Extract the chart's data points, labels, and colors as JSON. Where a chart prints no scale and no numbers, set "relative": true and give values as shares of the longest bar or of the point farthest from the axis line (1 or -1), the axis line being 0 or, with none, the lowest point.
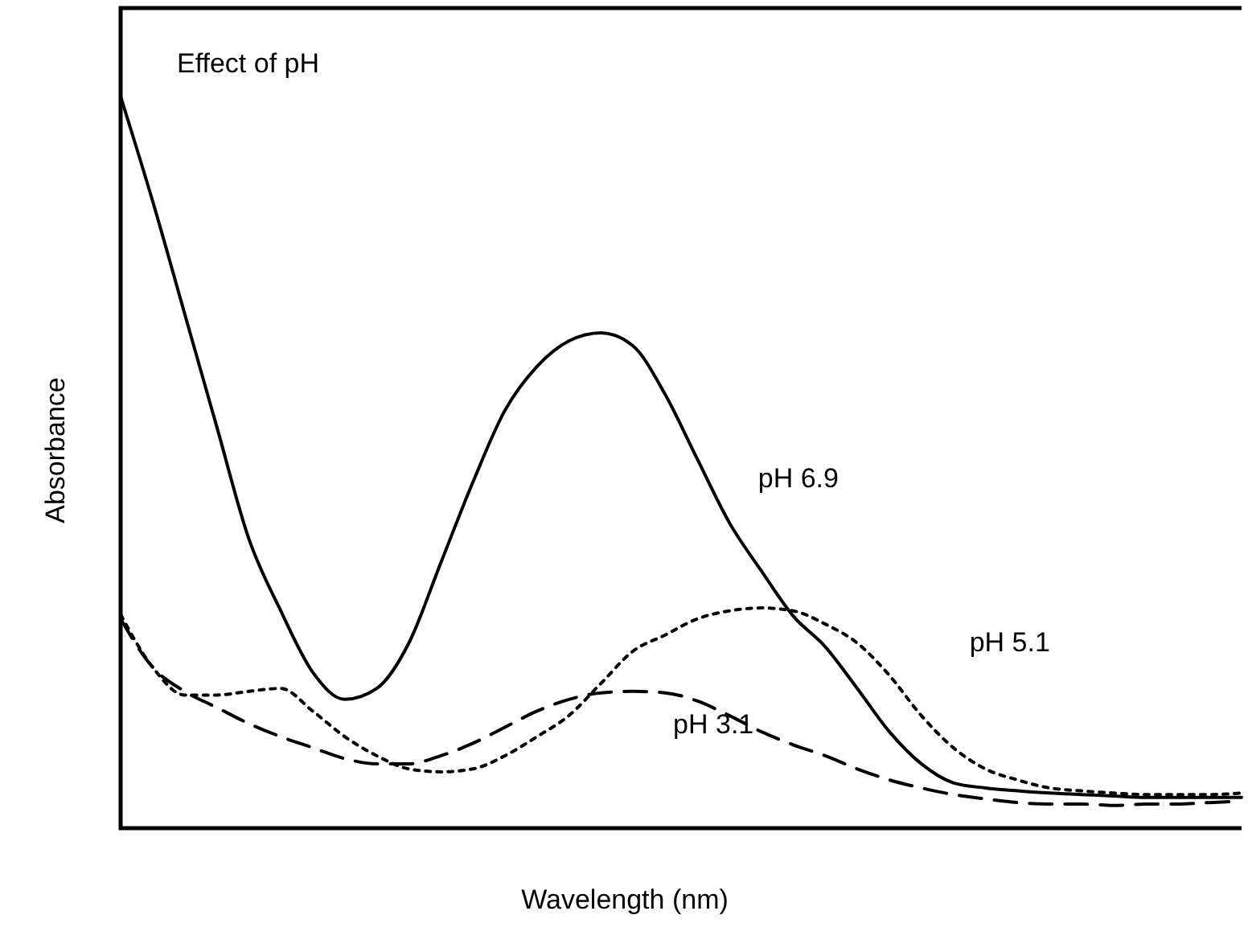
{
  "chart_data": {
    "type": "line",
    "title": "Effect of pH",
    "xlabel": "Wavelength (nm)",
    "ylabel": "Absorbance",
    "relative": true,
    "marker": "none",
    "categories": [
      null,
      null,
      null,
      null,
      null,
      null,
      null,
      null,
      null,
      null,
      null,
      null,
      null,
      null,
      null,
      null,
      null,
      null,
      null,
      null,
      null,
      null,
      null,
      null,
      null,
      null,
      null,
      null,
      null,
      null,
      null,
      null,
      null,
      null,
      null,
      null
    ],
    "series": [
      {
        "name": "pH 6.9",
        "color": "#000000",
        "line_style": "solid",
        "values": [
          1.0,
          0.857,
          0.703,
          0.549,
          0.396,
          0.297,
          0.213,
          0.176,
          0.191,
          0.253,
          0.363,
          0.473,
          0.571,
          0.631,
          0.666,
          0.677,
          0.659,
          0.593,
          0.505,
          0.418,
          0.352,
          0.29,
          0.248,
          0.191,
          0.132,
          0.088,
          0.062,
          0.055,
          0.051,
          0.048,
          0.046,
          0.044,
          0.042,
          0.042,
          0.042,
          0.042
        ]
      },
      {
        "name": "pH 5.1",
        "color": "#000000",
        "line_style": "dotted",
        "values": [
          0.292,
          0.22,
          0.182,
          0.182,
          0.187,
          0.191,
          0.16,
          0.125,
          0.099,
          0.081,
          0.077,
          0.081,
          0.099,
          0.125,
          0.154,
          0.198,
          0.242,
          0.264,
          0.286,
          0.297,
          0.301,
          0.297,
          0.279,
          0.253,
          0.209,
          0.154,
          0.11,
          0.081,
          0.066,
          0.055,
          0.051,
          0.048,
          0.046,
          0.046,
          0.046,
          0.048
        ]
      },
      {
        "name": "pH 3.1",
        "color": "#000000",
        "line_style": "dashed",
        "values": [
          0.286,
          0.22,
          0.187,
          0.165,
          0.143,
          0.125,
          0.11,
          0.095,
          0.088,
          0.088,
          0.099,
          0.116,
          0.138,
          0.16,
          0.176,
          0.185,
          0.187,
          0.185,
          0.174,
          0.154,
          0.132,
          0.114,
          0.099,
          0.081,
          0.066,
          0.055,
          0.046,
          0.04,
          0.035,
          0.033,
          0.033,
          0.031,
          0.033,
          0.033,
          0.035,
          0.037
        ]
      }
    ]
  }
}
